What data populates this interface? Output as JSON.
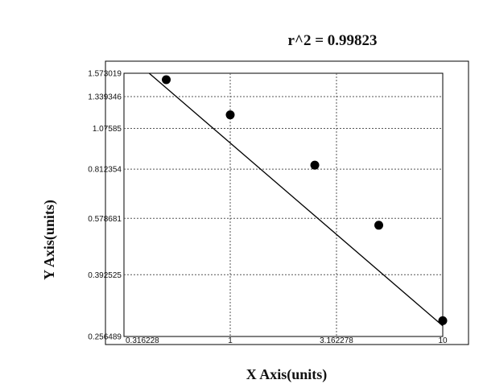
{
  "chart_data": {
    "type": "scatter",
    "title": "r^2  =  0.99823",
    "xlabel": "X Axis(units)",
    "ylabel": "Y Axis(units)",
    "x_scale": "log",
    "y_scale": "log",
    "xlim": [
      0.316228,
      10
    ],
    "ylim": [
      0.256489,
      1.573019
    ],
    "x_ticks": [
      "0.316228",
      "1",
      "3.162278",
      "10"
    ],
    "x_tick_values": [
      0.316228,
      1,
      3.162278,
      10
    ],
    "y_ticks": [
      "1.573019",
      "1.339346",
      "1.07585",
      "0.812354",
      "0.578681",
      "0.392525",
      "0.256489"
    ],
    "y_tick_values": [
      1.573019,
      1.339346,
      1.07585,
      0.812354,
      0.578681,
      0.392525,
      0.256489
    ],
    "grid": true,
    "series": [
      {
        "points": [
          {
            "x": 0.5,
            "y": 1.505
          },
          {
            "x": 1.0,
            "y": 1.181
          },
          {
            "x": 2.5,
            "y": 0.835
          },
          {
            "x": 5.0,
            "y": 0.552
          },
          {
            "x": 10.0,
            "y": 0.286
          }
        ],
        "fit_line": [
          {
            "x": 0.4155,
            "y": 1.573019
          },
          {
            "x": 10.0,
            "y": 0.276
          }
        ]
      }
    ]
  }
}
